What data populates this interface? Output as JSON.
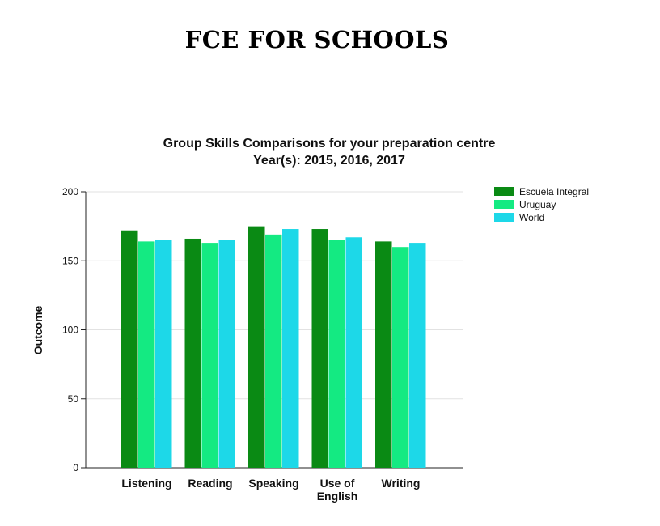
{
  "page": {
    "heading": "FCE FOR SCHOOLS"
  },
  "chart_data": {
    "type": "bar",
    "title": "Group Skills Comparisons for your preparation centre",
    "subtitle": "Year(s): 2015, 2016, 2017",
    "ylabel": "Outcome",
    "xlabel": "",
    "ylim": [
      0,
      200
    ],
    "yticks": [
      0,
      50,
      100,
      150,
      200
    ],
    "grid": true,
    "legend_position": "top-right",
    "categories": [
      [
        "Listening"
      ],
      [
        "Reading"
      ],
      [
        "Speaking"
      ],
      [
        "Use of",
        "English"
      ],
      [
        "Writing"
      ]
    ],
    "series": [
      {
        "name": "Escuela Integral",
        "color": "#0a8a14",
        "values": [
          172,
          166,
          175,
          173,
          164
        ]
      },
      {
        "name": "Uruguay",
        "color": "#14ea82",
        "values": [
          164,
          163,
          169,
          165,
          160
        ]
      },
      {
        "name": "World",
        "color": "#1dd8e8",
        "values": [
          165,
          165,
          173,
          167,
          163
        ]
      }
    ]
  }
}
